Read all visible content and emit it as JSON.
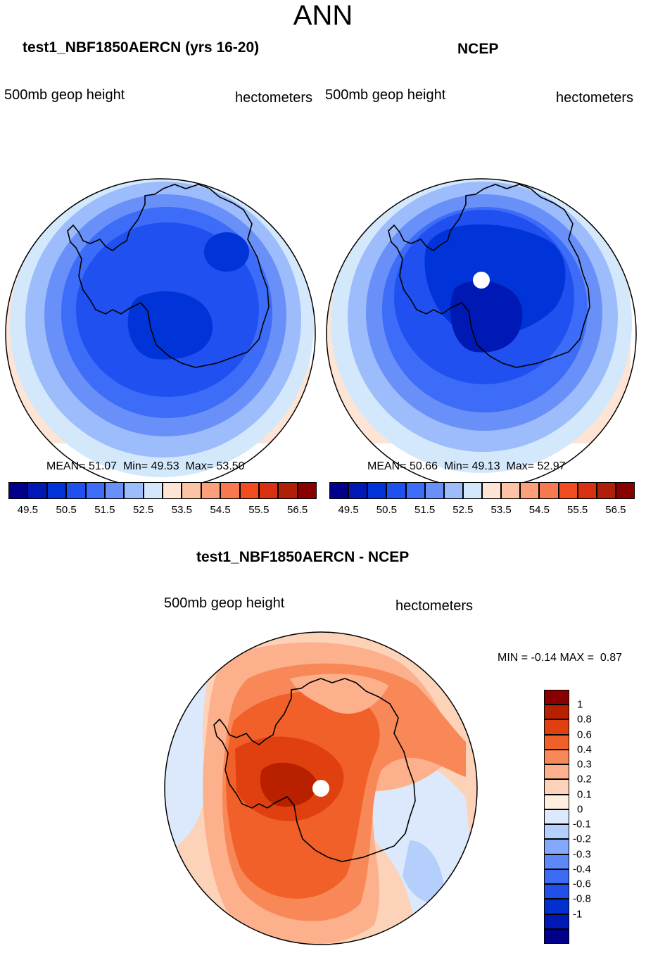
{
  "page": {
    "title": "ANN"
  },
  "panels": [
    {
      "title": "test1_NBF1850AERCN (yrs 16-20)",
      "variable": "500mb geop height",
      "units": "hectometers",
      "stats": {
        "mean_label": "MEAN=",
        "mean": "51.07",
        "min_label": "Min=",
        "min": "49.53",
        "max_label": "Max=",
        "max": "53.50"
      }
    },
    {
      "title": "NCEP",
      "variable": "500mb geop height",
      "units": "hectometers",
      "stats": {
        "mean_label": "MEAN=",
        "mean": "50.66",
        "min_label": "Min=",
        "min": "49.13",
        "max_label": "Max=",
        "max": "52.97"
      }
    },
    {
      "title": "test1_NBF1850AERCN - NCEP",
      "variable": "500mb geop height",
      "units": "hectometers",
      "stats": {
        "min_label": "MIN =",
        "min": "-0.14",
        "max_label": "MAX =",
        "max": "0.87"
      }
    }
  ],
  "colorbar_abs": {
    "colors": [
      "#00008a",
      "#0018b4",
      "#0034d8",
      "#2050f0",
      "#3c6cf8",
      "#6890f8",
      "#9cbcfc",
      "#d4e8fc",
      "#fde4d4",
      "#fcc4a4",
      "#fca07c",
      "#f87850",
      "#f04c20",
      "#d83010",
      "#b02008",
      "#880000"
    ],
    "tick_labels": [
      "49.5",
      "50.5",
      "51.5",
      "52.5",
      "53.5",
      "54.5",
      "55.5",
      "56.5"
    ]
  },
  "colorbar_diff": {
    "colors": [
      "#00008a",
      "#0018b4",
      "#0030d0",
      "#2050e8",
      "#3c6cf4",
      "#5c88f8",
      "#84a8fc",
      "#b4cffc",
      "#dce9fc",
      "#fdeee0",
      "#fcd2b8",
      "#fcb08c",
      "#f88858",
      "#f06028",
      "#e04010",
      "#b82000",
      "#880000"
    ],
    "tick_labels": [
      "1",
      "0.8",
      "0.6",
      "0.4",
      "0.3",
      "0.2",
      "0.1",
      "0",
      "-0.1",
      "-0.2",
      "-0.3",
      "-0.4",
      "-0.6",
      "-0.8",
      "-1"
    ]
  },
  "chart_data": [
    {
      "type": "heatmap",
      "projection": "south polar stereographic",
      "title": "test1_NBF1850AERCN (yrs 16-20)",
      "variable": "500mb geop height",
      "units": "hectometers",
      "mean": 51.07,
      "min": 49.53,
      "max": 53.5,
      "contour_levels": [
        49.5,
        50,
        50.5,
        51,
        51.5,
        52,
        52.5,
        53,
        53.5,
        54,
        54.5,
        55,
        55.5,
        56,
        56.5
      ],
      "pattern": "lowest heights over East Antarctica interior, increasing concentrically toward the outer latitude edge"
    },
    {
      "type": "heatmap",
      "projection": "south polar stereographic",
      "title": "NCEP",
      "variable": "500mb geop height",
      "units": "hectometers",
      "mean": 50.66,
      "min": 49.13,
      "max": 52.97,
      "contour_levels": [
        49.5,
        50,
        50.5,
        51,
        51.5,
        52,
        52.5,
        53,
        53.5,
        54,
        54.5,
        55,
        55.5,
        56,
        56.5
      ],
      "pattern": "minimum near the pole over the Ross Sea sector, increasing concentrically outward"
    },
    {
      "type": "heatmap",
      "projection": "south polar stereographic",
      "title": "test1_NBF1850AERCN - NCEP",
      "variable": "500mb geop height",
      "units": "hectometers",
      "min": -0.14,
      "max": 0.87,
      "contour_levels": [
        -1,
        -0.8,
        -0.6,
        -0.4,
        -0.3,
        -0.2,
        -0.1,
        0,
        0.1,
        0.2,
        0.3,
        0.4,
        0.6,
        0.8,
        1
      ],
      "pattern": "largest positive differences over West Antarctica near the pole, small negative differences in the Indian Ocean sector"
    }
  ]
}
